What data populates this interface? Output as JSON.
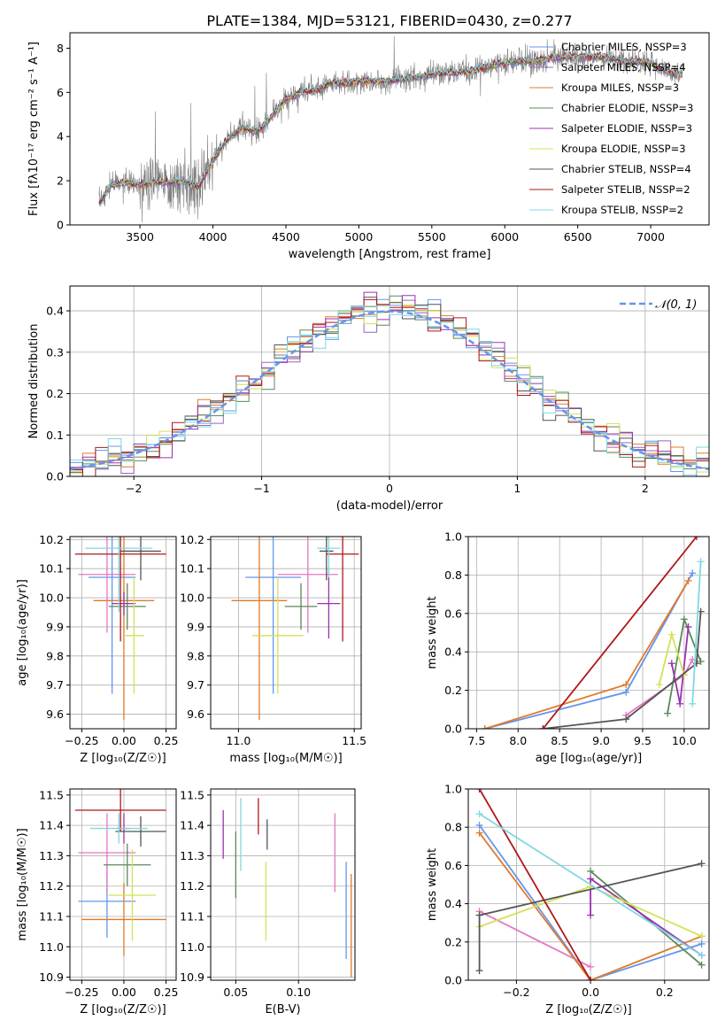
{
  "page": {
    "title": "PLATE=1384, MJD=53121, FIBERID=0430, z=0.277"
  },
  "colors": {
    "c1": "#6495ed",
    "c2": "#9467bd",
    "c3": "#e07b2a",
    "c4": "#5a8a5a",
    "c5": "#9b30b0",
    "c6": "#d4e157",
    "c7": "#555555",
    "c8": "#b01818",
    "c9": "#80d8e0",
    "pink": "#e377c2",
    "gray": "#888888"
  },
  "chart_data": [
    {
      "type": "line",
      "id": "spectrum",
      "xlabel": "wavelength [Angstrom, rest frame]",
      "ylabel": "Flux [f$_\\lambda$10$^{-17}$ erg cm$^{-2}$ s$^{-1}$ A$^{-1}$]",
      "ylabel_display": "Flux [fλ10⁻¹⁷ erg cm⁻² s⁻¹ A⁻¹]",
      "xlim": [
        3020,
        7400
      ],
      "ylim": [
        0,
        8.7
      ],
      "xticks": [
        3500,
        4000,
        4500,
        5000,
        5500,
        6000,
        6500,
        7000
      ],
      "yticks": [
        0,
        2,
        4,
        6,
        8
      ],
      "legend": "top-right",
      "series": [
        {
          "name": "Chabrier MILES, N$_{SSP}$=3",
          "label": "Chabrier MILES, NSSP=3",
          "color": "#6495ed"
        },
        {
          "name": "Salpeter MILES, N$_{SSP}$=4",
          "label": "Salpeter MILES, NSSP=4",
          "color": "#9467bd"
        },
        {
          "name": "Kroupa MILES, N$_{SSP}$=3",
          "label": "Kroupa MILES, NSSP=3",
          "color": "#e07b2a"
        },
        {
          "name": "Chabrier ELODIE, N$_{SSP}$=3",
          "label": "Chabrier ELODIE, NSSP=3",
          "color": "#5a8a5a"
        },
        {
          "name": "Salpeter ELODIE, N$_{SSP}$=3",
          "label": "Salpeter ELODIE, NSSP=3",
          "color": "#9b30b0"
        },
        {
          "name": "Kroupa ELODIE, N$_{SSP}$=3",
          "label": "Kroupa ELODIE, NSSP=3",
          "color": "#d4e157"
        },
        {
          "name": "Chabrier STELIB, N$_{SSP}$=4",
          "label": "Chabrier STELIB, NSSP=4",
          "color": "#555555"
        },
        {
          "name": "Salpeter STELIB, N$_{SSP}$=2",
          "label": "Salpeter STELIB, NSSP=2",
          "color": "#b01818"
        },
        {
          "name": "Kroupa STELIB, N$_{SSP}$=2",
          "label": "Kroupa STELIB, NSSP=2",
          "color": "#80d8e0"
        }
      ],
      "model_curve": {
        "x": [
          3220,
          3300,
          3400,
          3500,
          3600,
          3700,
          3800,
          3900,
          4000,
          4100,
          4200,
          4300,
          4400,
          4500,
          4600,
          4700,
          4800,
          4900,
          5000,
          5100,
          5200,
          5300,
          5400,
          5500,
          5600,
          5700,
          5800,
          5900,
          6000,
          6100,
          6200,
          6300,
          6400,
          6500,
          6600,
          6700,
          6800,
          6900,
          7000,
          7100,
          7200
        ],
        "y": [
          1.0,
          1.8,
          1.9,
          1.8,
          1.95,
          1.9,
          2.0,
          1.7,
          2.9,
          3.9,
          4.4,
          4.2,
          4.9,
          5.7,
          6.0,
          6.1,
          6.4,
          6.4,
          6.5,
          6.5,
          6.5,
          6.6,
          6.7,
          6.8,
          6.9,
          6.9,
          7.0,
          7.2,
          7.3,
          7.4,
          7.4,
          7.5,
          7.6,
          7.6,
          7.6,
          7.6,
          7.4,
          7.4,
          7.3,
          7.0,
          6.8
        ]
      }
    },
    {
      "type": "line",
      "id": "residuals",
      "xlabel": "(data-model)/error",
      "ylabel": "Normed distribution",
      "xlim": [
        -2.5,
        2.5
      ],
      "ylim": [
        0,
        0.46
      ],
      "xticks": [
        -2,
        -1,
        0,
        1,
        2
      ],
      "yticks": [
        0.0,
        0.1,
        0.2,
        0.3,
        0.4
      ],
      "grid": true,
      "legend": "top-right",
      "reference": {
        "name": "$\\mathcal{N}(0,1)$",
        "label": "𝒩(0, 1)",
        "mu": 0,
        "sigma": 1,
        "color": "#6495ed"
      },
      "bin_width": 0.1
    },
    {
      "type": "scatter",
      "id": "age_vs_Z",
      "xlabel": "Z [log$_{10}$(Z/Z$_\\odot$)]",
      "xlabel_display": "Z [log₁₀(Z/Z☉)]",
      "ylabel": "age  [log$_{10}$(age/yr)]",
      "ylabel_display": "age  [log₁₀(age/yr)]",
      "xlim": [
        -0.32,
        0.31
      ],
      "ylim": [
        9.55,
        10.21
      ],
      "xticks": [
        -0.25,
        0.0,
        0.25
      ],
      "yticks": [
        9.6,
        9.7,
        9.8,
        9.9,
        10.0,
        10.1,
        10.2
      ],
      "grid": true,
      "points": [
        {
          "x": -0.07,
          "y": 10.07,
          "xerr": 0.14,
          "yerr": 0.4,
          "color": "#6495ed"
        },
        {
          "x": -0.1,
          "y": 10.08,
          "xerr": 0.17,
          "yerr": 0.2,
          "color": "#e377c2"
        },
        {
          "x": 0.0,
          "y": 9.99,
          "xerr": 0.18,
          "yerr": 0.41,
          "color": "#e07b2a"
        },
        {
          "x": 0.02,
          "y": 9.97,
          "xerr": 0.11,
          "yerr": 0.08,
          "color": "#5a8a5a"
        },
        {
          "x": 0.0,
          "y": 9.98,
          "xerr": 0.07,
          "yerr": 0.04,
          "color": "#9b30b0"
        },
        {
          "x": 0.06,
          "y": 9.87,
          "xerr": 0.06,
          "yerr": 0.2,
          "color": "#d4e157"
        },
        {
          "x": 0.1,
          "y": 10.16,
          "xerr": 0.12,
          "yerr": 0.1,
          "color": "#555555"
        },
        {
          "x": -0.02,
          "y": 10.15,
          "xerr": 0.27,
          "yerr": 0.3,
          "color": "#b01818"
        },
        {
          "x": -0.03,
          "y": 10.17,
          "xerr": 0.2,
          "yerr": 0.22,
          "color": "#80d8e0"
        }
      ]
    },
    {
      "type": "scatter",
      "id": "age_vs_mass",
      "xlabel": "mass [log$_{10}$(M/M$_\\odot$)]",
      "xlabel_display": "mass [log₁₀(M/M☉)]",
      "ylabel": "",
      "xlim": [
        10.88,
        11.53
      ],
      "ylim": [
        9.55,
        10.21
      ],
      "xticks": [
        11.0,
        11.5
      ],
      "yticks": [
        9.6,
        9.7,
        9.8,
        9.9,
        10.0,
        10.1,
        10.2
      ],
      "grid": true,
      "points": [
        {
          "x": 11.15,
          "y": 10.07,
          "xerr": 0.12,
          "yerr": 0.4,
          "color": "#6495ed"
        },
        {
          "x": 11.3,
          "y": 10.08,
          "xerr": 0.13,
          "yerr": 0.2,
          "color": "#e377c2"
        },
        {
          "x": 11.09,
          "y": 9.99,
          "xerr": 0.12,
          "yerr": 0.41,
          "color": "#e07b2a"
        },
        {
          "x": 11.27,
          "y": 9.97,
          "xerr": 0.07,
          "yerr": 0.08,
          "color": "#5a8a5a"
        },
        {
          "x": 11.39,
          "y": 9.98,
          "xerr": 0.05,
          "yerr": 0.12,
          "color": "#9b30b0"
        },
        {
          "x": 11.17,
          "y": 9.87,
          "xerr": 0.11,
          "yerr": 0.2,
          "color": "#d4e157"
        },
        {
          "x": 11.38,
          "y": 10.16,
          "xerr": 0.03,
          "yerr": 0.1,
          "color": "#555555"
        },
        {
          "x": 11.45,
          "y": 10.15,
          "xerr": 0.07,
          "yerr": 0.3,
          "color": "#b01818"
        },
        {
          "x": 11.39,
          "y": 10.17,
          "xerr": 0.05,
          "yerr": 0.1,
          "color": "#80d8e0"
        }
      ]
    },
    {
      "type": "line",
      "id": "massweight_vs_age",
      "xlabel": "age  [log$_{10}$(age/yr)]",
      "xlabel_display": "age  [log₁₀(age/yr)]",
      "ylabel": "mass weight",
      "xlim": [
        7.4,
        10.3
      ],
      "ylim": [
        0,
        1.0
      ],
      "xticks": [
        7.5,
        8.0,
        8.5,
        9.0,
        9.5,
        10.0
      ],
      "yticks": [
        0.0,
        0.2,
        0.4,
        0.6,
        0.8,
        1.0
      ],
      "grid": true,
      "series": [
        {
          "color": "#6495ed",
          "x": [
            7.6,
            9.3,
            10.1
          ],
          "y": [
            0.0,
            0.19,
            0.81
          ]
        },
        {
          "color": "#e377c2",
          "x": [
            9.3,
            10.0,
            10.1
          ],
          "y": [
            0.07,
            0.28,
            0.36
          ]
        },
        {
          "color": "#e07b2a",
          "x": [
            7.6,
            9.3,
            10.05
          ],
          "y": [
            0.0,
            0.23,
            0.77
          ]
        },
        {
          "color": "#5a8a5a",
          "x": [
            9.8,
            10.0,
            10.2
          ],
          "y": [
            0.08,
            0.57,
            0.35
          ]
        },
        {
          "color": "#9b30b0",
          "x": [
            9.85,
            9.95,
            10.05
          ],
          "y": [
            0.34,
            0.13,
            0.53
          ]
        },
        {
          "color": "#d4e157",
          "x": [
            9.7,
            9.85,
            10.0
          ],
          "y": [
            0.23,
            0.49,
            0.28
          ]
        },
        {
          "color": "#555555",
          "x": [
            8.3,
            9.3,
            10.15,
            10.2
          ],
          "y": [
            0.0,
            0.05,
            0.34,
            0.61
          ]
        },
        {
          "color": "#b01818",
          "x": [
            8.3,
            10.15
          ],
          "y": [
            0.0,
            1.0
          ]
        },
        {
          "color": "#80d8e0",
          "x": [
            10.1,
            10.2
          ],
          "y": [
            0.13,
            0.87
          ]
        }
      ]
    },
    {
      "type": "scatter",
      "id": "mass_vs_Z",
      "xlabel": "Z [log$_{10}$(Z/Z$_\\odot$)]",
      "xlabel_display": "Z [log₁₀(Z/Z☉)]",
      "ylabel": "mass [log$_{10}$(M/M$_\\odot$)]",
      "ylabel_display": "mass [log₁₀(M/M☉)]",
      "xlim": [
        -0.32,
        0.31
      ],
      "ylim": [
        10.89,
        11.52
      ],
      "xticks": [
        -0.25,
        0.0,
        0.25
      ],
      "yticks": [
        10.9,
        11.0,
        11.1,
        11.2,
        11.3,
        11.4,
        11.5
      ],
      "grid": true,
      "points": [
        {
          "x": -0.1,
          "y": 11.15,
          "xerr": 0.17,
          "yerr": 0.12,
          "color": "#6495ed"
        },
        {
          "x": -0.1,
          "y": 11.31,
          "xerr": 0.17,
          "yerr": 0.13,
          "color": "#e377c2"
        },
        {
          "x": 0.0,
          "y": 11.09,
          "xerr": 0.25,
          "yerr": 0.12,
          "color": "#e07b2a"
        },
        {
          "x": 0.02,
          "y": 11.27,
          "xerr": 0.14,
          "yerr": 0.07,
          "color": "#5a8a5a"
        },
        {
          "x": 0.0,
          "y": 11.39,
          "xerr": 0.04,
          "yerr": 0.05,
          "color": "#9b30b0"
        },
        {
          "x": 0.05,
          "y": 11.17,
          "xerr": 0.14,
          "yerr": 0.15,
          "color": "#d4e157"
        },
        {
          "x": 0.1,
          "y": 11.38,
          "xerr": 0.15,
          "yerr": 0.05,
          "color": "#555555"
        },
        {
          "x": -0.02,
          "y": 11.45,
          "xerr": 0.27,
          "yerr": 0.07,
          "color": "#b01818"
        },
        {
          "x": -0.03,
          "y": 11.39,
          "xerr": 0.17,
          "yerr": 0.05,
          "color": "#80d8e0"
        }
      ]
    },
    {
      "type": "scatter",
      "id": "mass_vs_ebv",
      "xlabel": "E(B-V)",
      "ylabel": "",
      "xlim": [
        0.03,
        0.145
      ],
      "ylim": [
        10.89,
        11.52
      ],
      "xticks": [
        0.05,
        0.1
      ],
      "yticks": [
        10.9,
        11.0,
        11.1,
        11.2,
        11.3,
        11.4,
        11.5
      ],
      "grid": true,
      "points": [
        {
          "x": 0.138,
          "y": 11.12,
          "yerr": 0.16,
          "color": "#6495ed"
        },
        {
          "x": 0.129,
          "y": 11.31,
          "yerr": 0.13,
          "color": "#e377c2"
        },
        {
          "x": 0.142,
          "y": 11.07,
          "yerr": 0.17,
          "color": "#e07b2a"
        },
        {
          "x": 0.05,
          "y": 11.27,
          "yerr": 0.11,
          "color": "#5a8a5a"
        },
        {
          "x": 0.04,
          "y": 11.37,
          "yerr": 0.08,
          "color": "#9b30b0"
        },
        {
          "x": 0.074,
          "y": 11.15,
          "yerr": 0.13,
          "color": "#d4e157"
        },
        {
          "x": 0.075,
          "y": 11.37,
          "yerr": 0.05,
          "color": "#555555"
        },
        {
          "x": 0.068,
          "y": 11.43,
          "yerr": 0.06,
          "color": "#b01818"
        },
        {
          "x": 0.054,
          "y": 11.37,
          "yerr": 0.12,
          "color": "#80d8e0"
        }
      ]
    },
    {
      "type": "line",
      "id": "massweight_vs_Z",
      "xlabel": "Z [log$_{10}$(Z/Z$_\\odot$)]",
      "xlabel_display": "Z [log₁₀(Z/Z☉)]",
      "ylabel": "mass weight",
      "xlim": [
        -0.33,
        0.32
      ],
      "ylim": [
        0,
        1.0
      ],
      "xticks": [
        -0.2,
        0.0,
        0.2
      ],
      "yticks": [
        0.0,
        0.2,
        0.4,
        0.6,
        0.8,
        1.0
      ],
      "grid": true,
      "series": [
        {
          "color": "#6495ed",
          "x": [
            -0.3,
            0.0,
            0.3
          ],
          "y": [
            0.81,
            0.0,
            0.19
          ]
        },
        {
          "color": "#e377c2",
          "x": [
            -0.3,
            0.0
          ],
          "y": [
            0.36,
            0.07
          ]
        },
        {
          "color": "#e07b2a",
          "x": [
            -0.3,
            0.0,
            0.3
          ],
          "y": [
            0.77,
            0.0,
            0.23
          ]
        },
        {
          "color": "#5a8a5a",
          "x": [
            0.0,
            0.3
          ],
          "y": [
            0.57,
            0.08
          ]
        },
        {
          "color": "#9b30b0",
          "x": [
            0.0,
            0.0,
            0.3
          ],
          "y": [
            0.34,
            0.53,
            0.13
          ]
        },
        {
          "color": "#d4e157",
          "x": [
            -0.3,
            0.0,
            0.3
          ],
          "y": [
            0.28,
            0.49,
            0.23
          ]
        },
        {
          "color": "#555555",
          "x": [
            -0.3,
            -0.3,
            0.3
          ],
          "y": [
            0.05,
            0.34,
            0.61
          ]
        },
        {
          "color": "#b01818",
          "x": [
            -0.3,
            0.0
          ],
          "y": [
            1.0,
            0.0
          ]
        },
        {
          "color": "#80d8e0",
          "x": [
            -0.3,
            0.3
          ],
          "y": [
            0.87,
            0.13
          ]
        }
      ]
    }
  ]
}
